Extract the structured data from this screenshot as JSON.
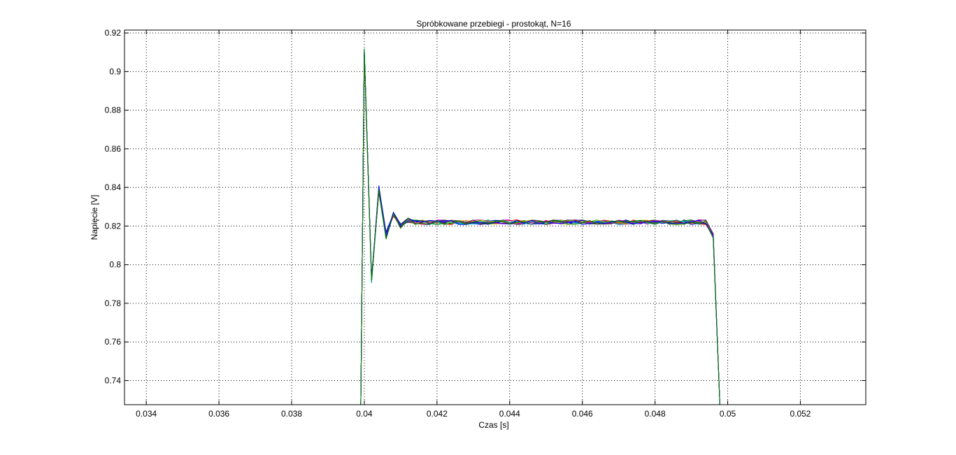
{
  "chart_data": {
    "type": "line",
    "title": "Spróbkowane przebiegi - prostokąt, N=16",
    "xlabel": "Czas [s]",
    "ylabel": "Napięcie [V]",
    "xlim": [
      0.0334,
      0.0538
    ],
    "ylim": [
      0.7275,
      0.9215
    ],
    "xticks": [
      0.034,
      0.036,
      0.038,
      0.04,
      0.042,
      0.044,
      0.046,
      0.048,
      0.05,
      0.052
    ],
    "xtick_labels": [
      "0.034",
      "0.036",
      "0.038",
      "0.04",
      "0.042",
      "0.044",
      "0.046",
      "0.048",
      "0.05",
      "0.052"
    ],
    "yticks": [
      0.74,
      0.76,
      0.78,
      0.8,
      0.82,
      0.84,
      0.86,
      0.88,
      0.9,
      0.92
    ],
    "ytick_labels": [
      "0.74",
      "0.76",
      "0.78",
      "0.8",
      "0.82",
      "0.84",
      "0.86",
      "0.88",
      "0.9",
      "0.92"
    ],
    "grid": true,
    "grid_style": "dotted",
    "series_colors": [
      "#0000ff",
      "#008000",
      "#ff0000",
      "#00bfbf",
      "#bf00bf",
      "#bfbf00",
      "#404040",
      "#0000ff",
      "#008000",
      "#ff0000",
      "#00bfbf",
      "#bf00bf",
      "#bfbf00",
      "#404040",
      "#0000ff",
      "#008000"
    ],
    "sample_times": [
      0.0399,
      0.04,
      0.0402,
      0.0404,
      0.0406,
      0.0408,
      0.041,
      0.0412,
      0.0414,
      0.0416,
      0.0418,
      0.042,
      0.0422,
      0.0424,
      0.0426,
      0.0428,
      0.043,
      0.0432,
      0.0434,
      0.0436,
      0.0438,
      0.044,
      0.0442,
      0.0444,
      0.0446,
      0.0448,
      0.045,
      0.0452,
      0.0454,
      0.0456,
      0.0458,
      0.046,
      0.0462,
      0.0464,
      0.0466,
      0.0468,
      0.047,
      0.0472,
      0.0474,
      0.0476,
      0.0478,
      0.048,
      0.0482,
      0.0484,
      0.0486,
      0.0488,
      0.049,
      0.0492,
      0.0494,
      0.0496,
      0.0498
    ],
    "template_values": [
      0.72,
      0.91,
      0.792,
      0.839,
      0.815,
      0.826,
      0.82,
      0.823,
      0.822,
      0.822,
      0.822,
      0.822,
      0.822,
      0.822,
      0.822,
      0.822,
      0.822,
      0.822,
      0.822,
      0.822,
      0.822,
      0.822,
      0.822,
      0.822,
      0.822,
      0.822,
      0.822,
      0.822,
      0.822,
      0.822,
      0.822,
      0.822,
      0.822,
      0.822,
      0.822,
      0.822,
      0.822,
      0.822,
      0.822,
      0.822,
      0.822,
      0.822,
      0.822,
      0.822,
      0.822,
      0.822,
      0.822,
      0.822,
      0.822,
      0.815,
      0.72
    ],
    "noise_amplitude": 0.0025
  }
}
